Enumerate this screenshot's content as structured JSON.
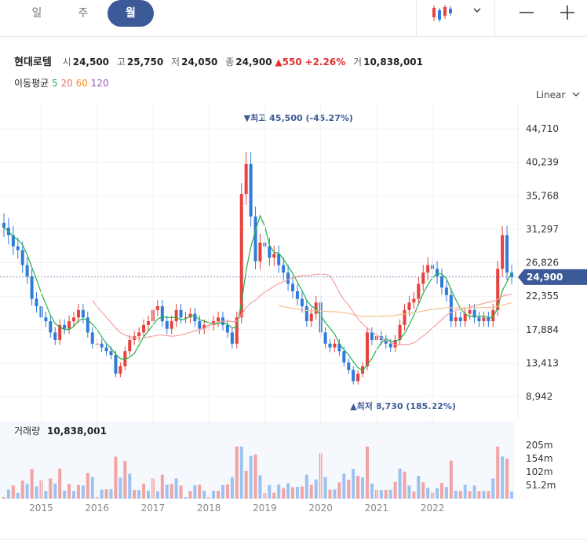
{
  "tabs": [
    {
      "label": "일"
    },
    {
      "label": "주"
    },
    {
      "label": "월"
    }
  ],
  "toolbar": {
    "chart_type_icon": "candlestick-icon",
    "dropdown_icon": "chevron-down-icon",
    "zoom_out_icon": "minus-icon",
    "zoom_in_icon": "plus-icon"
  },
  "quote": {
    "name": "현대로템",
    "open_label": "시",
    "open": "24,500",
    "high_label": "고",
    "high": "25,750",
    "low_label": "저",
    "low": "24,050",
    "close_label": "종",
    "close": "24,900",
    "change": "▲550",
    "change_pct": "+2.26%",
    "volume_label": "거",
    "volume": "10,838,001"
  },
  "moving_average": {
    "label": "이동평균",
    "periods": [
      "5",
      "20",
      "60",
      "120"
    ],
    "colors": [
      "#22b14c",
      "#f07070",
      "#ff8c1a",
      "#9b59b6"
    ]
  },
  "scale_label": "Linear",
  "scale_icon": "chevron-down-icon",
  "colors": {
    "up": "#e8423d",
    "down": "#2f7bd9",
    "accent": "#3d5a98"
  },
  "chart_data": {
    "type": "candlestick",
    "period": "monthly",
    "x_labels": [
      "2015",
      "2016",
      "2017",
      "2018",
      "2019",
      "2020",
      "2021",
      "2022"
    ],
    "y_ticks": [
      "44,710",
      "40,239",
      "35,768",
      "31,297",
      "26,826",
      "22,355",
      "17,884",
      "13,413",
      "8,942"
    ],
    "price_labels": {
      "current": "24,900",
      "high": "최고 45,500 (-45.27%)",
      "low": "최저 8,730 (185.22%)"
    },
    "candles_note": "approximate monthly OHLC read off the chart",
    "closes": [
      31500,
      30500,
      29000,
      28500,
      26500,
      25000,
      22000,
      21000,
      19500,
      19000,
      17500,
      16500,
      18500,
      18000,
      19000,
      19500,
      20500,
      19500,
      17500,
      16000,
      16000,
      15500,
      15000,
      14500,
      12000,
      13000,
      15000,
      16500,
      17000,
      17500,
      18500,
      19000,
      20500,
      21000,
      19000,
      18000,
      19000,
      20500,
      19500,
      19500,
      20000,
      19000,
      18000,
      18500,
      18500,
      19000,
      19500,
      18500,
      17500,
      16000,
      19500,
      36000,
      40000,
      33000,
      27000,
      29500,
      29000,
      27500,
      28000,
      26500,
      25500,
      24000,
      23000,
      22000,
      21000,
      19000,
      20000,
      21500,
      17500,
      16000,
      15500,
      16000,
      15000,
      13500,
      12500,
      11000,
      12000,
      13000,
      17500,
      16500,
      17000,
      16500,
      16000,
      15500,
      16500,
      18500,
      20500,
      21500,
      22000,
      24000,
      25500,
      26500,
      26000,
      25000,
      23500,
      22500,
      19000,
      19500,
      19000,
      20000,
      20500,
      19500,
      19000,
      19500,
      19000,
      20500,
      26000,
      30500,
      25500,
      24900
    ],
    "volume_y_ticks": [
      "205m",
      "154m",
      "102m",
      "51.2m"
    ],
    "volume_label": "거래량",
    "volume_value": "10,838,001"
  }
}
